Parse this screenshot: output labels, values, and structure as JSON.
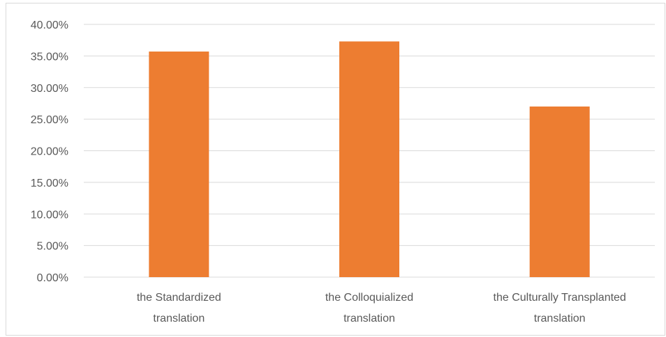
{
  "chart_data": {
    "type": "bar",
    "categories": [
      [
        "the Standardized",
        "translation"
      ],
      [
        "the Colloquialized",
        "translation"
      ],
      [
        "the Culturally Transplanted",
        "translation"
      ]
    ],
    "series": [
      {
        "values": [
          35.7,
          37.3,
          27.0
        ]
      }
    ],
    "ylim": [
      0,
      40
    ],
    "yticks": [
      "0.00%",
      "5.00%",
      "10.00%",
      "15.00%",
      "20.00%",
      "25.00%",
      "30.00%",
      "35.00%",
      "40.00%"
    ],
    "ytick_values": [
      0,
      5,
      10,
      15,
      20,
      25,
      30,
      35,
      40
    ],
    "title": "",
    "xlabel": "",
    "ylabel": "",
    "grid": true,
    "legend": "none",
    "colors": {
      "bar": "#ED7D31",
      "grid": "#d9d9d9",
      "text": "#595959"
    }
  }
}
